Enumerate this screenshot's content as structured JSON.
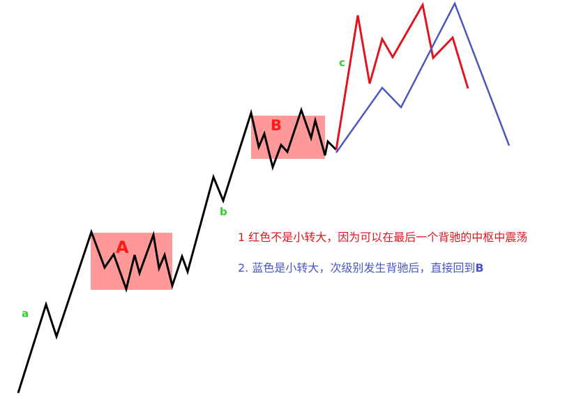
{
  "colors": {
    "background": "#ffffff",
    "zone_fill": "#ff9999",
    "main_path": "#000000",
    "red_path": "#e0141e",
    "blue_path": "#4a55c0",
    "green_label": "#33cc33",
    "zone_label": "#ff1a1a",
    "note_red": "#e0141e",
    "note_blue": "#4a55c0"
  },
  "zones": [
    {
      "label": "A"
    },
    {
      "label": "B"
    }
  ],
  "points": {
    "a": "a",
    "b": "b",
    "c": "c"
  },
  "notes": {
    "red": "1  红色不是小转大，因为可以在最后一个背驰的中枢中震荡",
    "blue_prefix": "2. 蓝色是小转大，次级别发生背驰后，直接回到",
    "blue_target": "B"
  }
}
